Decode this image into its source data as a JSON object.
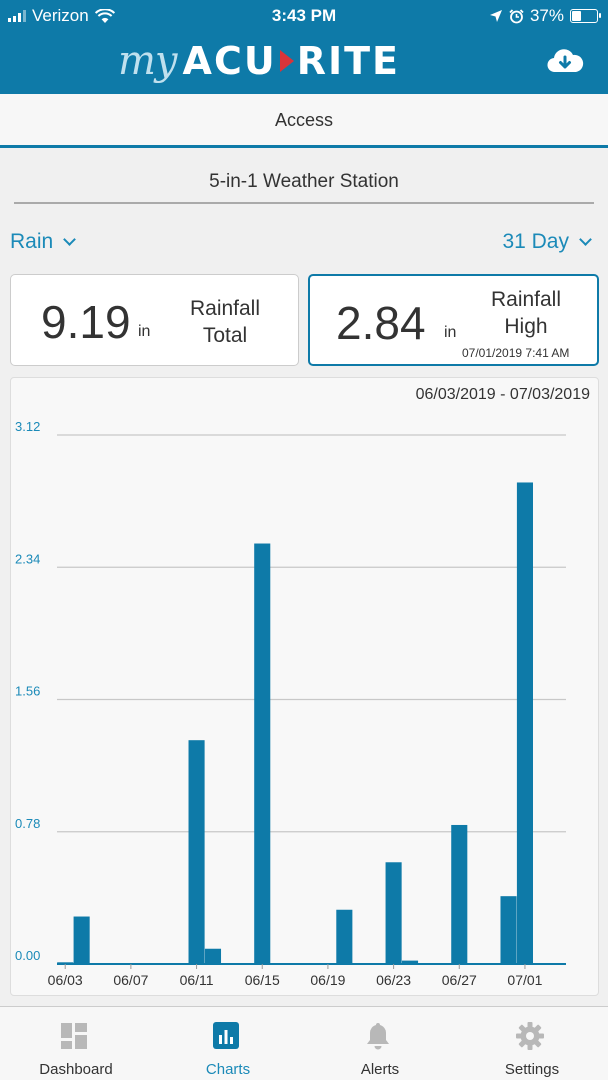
{
  "status_bar": {
    "carrier": "Verizon",
    "time": "3:43 PM",
    "battery": "37%",
    "battery_level": 0.37
  },
  "header": {
    "logo_my": "my",
    "logo_brand_left": "ACU",
    "logo_brand_right": "RITE",
    "cloud_icon": "cloud-download-icon"
  },
  "access": {
    "label": "Access"
  },
  "station": {
    "name": "5-in-1 Weather Station"
  },
  "selectors": {
    "metric": "Rain",
    "range": "31 Day"
  },
  "stats": {
    "total": {
      "value": "9.19",
      "unit": "in",
      "label_line1": "Rainfall",
      "label_line2": "Total"
    },
    "high": {
      "value": "2.84",
      "unit": "in",
      "label_line1": "Rainfall",
      "label_line2": "High",
      "date": "07/01/2019 7:41 AM"
    }
  },
  "chart_data": {
    "type": "bar",
    "date_range": "06/03/2019 - 07/03/2019",
    "title": "",
    "xlabel": "",
    "ylabel": "",
    "ylim": [
      0,
      3.12
    ],
    "yticks": [
      "3.12",
      "2.34",
      "1.56",
      "0.78",
      "0.00"
    ],
    "ytick_values": [
      3.12,
      2.34,
      1.56,
      0.78,
      0.0
    ],
    "categories": [
      "06/03",
      "06/04",
      "06/05",
      "06/06",
      "06/07",
      "06/08",
      "06/09",
      "06/10",
      "06/11",
      "06/12",
      "06/13",
      "06/14",
      "06/15",
      "06/16",
      "06/17",
      "06/18",
      "06/19",
      "06/20",
      "06/21",
      "06/22",
      "06/23",
      "06/24",
      "06/25",
      "06/26",
      "06/27",
      "06/28",
      "06/29",
      "06/30",
      "07/01",
      "07/02",
      "07/03"
    ],
    "values": [
      0.01,
      0.28,
      0,
      0,
      0,
      0,
      0,
      0,
      1.32,
      0.09,
      0,
      0,
      2.48,
      0,
      0,
      0,
      0,
      0.32,
      0,
      0,
      0.6,
      0.02,
      0,
      0,
      0.82,
      0,
      0,
      0.4,
      2.84,
      0,
      0
    ],
    "xtick_labels": [
      "06/03",
      "06/07",
      "06/11",
      "06/15",
      "06/19",
      "06/23",
      "06/27",
      "07/01"
    ],
    "xtick_indices": [
      0,
      4,
      8,
      12,
      16,
      20,
      24,
      28
    ],
    "bar_color": "#0e7aa8",
    "grid": true
  },
  "tabbar": {
    "tabs": [
      {
        "label": "Dashboard",
        "icon": "dashboard-icon",
        "active": false
      },
      {
        "label": "Charts",
        "icon": "charts-icon",
        "active": true
      },
      {
        "label": "Alerts",
        "icon": "bell-icon",
        "active": false
      },
      {
        "label": "Settings",
        "icon": "gear-icon",
        "active": false
      }
    ]
  },
  "colors": {
    "brand": "#0e7aa8",
    "accent_text": "#1b8ab8",
    "logo_arrow": "#d9343a",
    "inactive_icon": "#b8b8b8"
  }
}
